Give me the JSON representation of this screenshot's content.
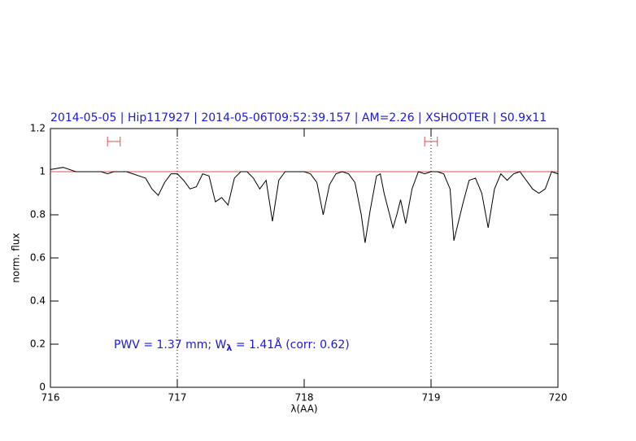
{
  "chart_data": {
    "type": "line",
    "title": "2014-05-05 | Hip117927 | 2014-05-06T09:52:39.157 | AM=2.26 | XSHOOTER | S0.9x11",
    "xlabel": "λ(AA)",
    "ylabel": "norm. flux",
    "annotation": [
      "PWV = 1.37 mm; W",
      "λ",
      " = 1.41Å (corr: 0.62)"
    ],
    "xlim": [
      716,
      720
    ],
    "ylim": [
      0,
      1.2
    ],
    "xticks": [
      716,
      717,
      718,
      719,
      720
    ],
    "yticks": [
      0,
      0.2,
      0.4,
      0.6,
      0.8,
      1,
      1.2
    ],
    "x": [
      716.0,
      716.1,
      716.2,
      716.3,
      716.4,
      716.45,
      716.5,
      716.6,
      716.65,
      716.7,
      716.75,
      716.8,
      716.85,
      716.9,
      716.95,
      717.0,
      717.05,
      717.1,
      717.15,
      717.2,
      717.25,
      717.3,
      717.35,
      717.4,
      717.45,
      717.5,
      717.55,
      717.6,
      717.65,
      717.7,
      717.75,
      717.8,
      717.85,
      717.9,
      717.95,
      718.0,
      718.05,
      718.1,
      718.15,
      718.2,
      718.25,
      718.3,
      718.35,
      718.4,
      718.45,
      718.48,
      718.52,
      718.57,
      718.6,
      718.63,
      718.7,
      718.73,
      718.76,
      718.8,
      718.85,
      718.9,
      718.95,
      719.0,
      719.05,
      719.1,
      719.15,
      719.18,
      719.25,
      719.3,
      719.35,
      719.4,
      719.45,
      719.5,
      719.55,
      719.6,
      719.65,
      719.7,
      719.75,
      719.8,
      719.85,
      719.9,
      719.95,
      720.0
    ],
    "series": [
      {
        "color": "#000000",
        "values": [
          1.01,
          1.02,
          1.0,
          1.0,
          1.0,
          0.99,
          1.0,
          1.0,
          0.99,
          0.98,
          0.97,
          0.92,
          0.89,
          0.95,
          0.99,
          0.99,
          0.96,
          0.92,
          0.93,
          0.99,
          0.98,
          0.86,
          0.88,
          0.845,
          0.97,
          1.0,
          1.0,
          0.97,
          0.92,
          0.96,
          0.77,
          0.96,
          1.0,
          1.0,
          1.0,
          1.0,
          0.99,
          0.95,
          0.8,
          0.94,
          0.99,
          1.0,
          0.99,
          0.95,
          0.8,
          0.67,
          0.82,
          0.98,
          0.99,
          0.9,
          0.74,
          0.8,
          0.87,
          0.76,
          0.92,
          1.0,
          0.99,
          1.0,
          1.0,
          0.99,
          0.92,
          0.68,
          0.85,
          0.96,
          0.97,
          0.9,
          0.74,
          0.92,
          0.99,
          0.96,
          0.99,
          1.0,
          0.96,
          0.92,
          0.9,
          0.92,
          1.0,
          0.99
        ]
      }
    ],
    "hline": {
      "y": 1,
      "color": "#e05050"
    },
    "vlines": [
      717,
      719
    ],
    "ranges": [
      {
        "x": [
          716.45,
          716.55
        ],
        "y": 1.14,
        "color": "#e05050"
      },
      {
        "x": [
          718.95,
          719.05
        ],
        "y": 1.14,
        "color": "#e05050"
      }
    ]
  }
}
